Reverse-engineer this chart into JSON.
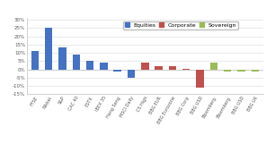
{
  "categories": [
    "FTSE",
    "Nikkei",
    "S&P",
    "CAC 40",
    "ESTX",
    "IBEX 35",
    "Hang Seng",
    "MSCI Daily",
    "CS High",
    "BBG EUR",
    "BBG Eurozone",
    "BBG Corp",
    "BBG USD",
    "Bloomberg",
    "Bloomberg",
    "BBG USD",
    "BBG UK"
  ],
  "values": [
    11,
    25,
    13.5,
    9,
    5.5,
    4,
    -1,
    -5,
    4,
    2,
    2,
    0.5,
    -11,
    4,
    -1,
    -1,
    -1.2
  ],
  "colors": [
    "#4472C4",
    "#4472C4",
    "#4472C4",
    "#4472C4",
    "#4472C4",
    "#4472C4",
    "#4472C4",
    "#4472C4",
    "#C0504D",
    "#C0504D",
    "#C0504D",
    "#C0504D",
    "#C0504D",
    "#9BBB59",
    "#9BBB59",
    "#9BBB59",
    "#9BBB59"
  ],
  "legend_labels": [
    "Equities",
    "Corporate",
    "Sovereign"
  ],
  "legend_colors": [
    "#4472C4",
    "#C0504D",
    "#9BBB59"
  ],
  "ylim": [
    -15,
    31
  ],
  "yticks": [
    -15,
    -10,
    -5,
    0,
    5,
    10,
    15,
    20,
    25,
    30
  ],
  "plot_bg": "#FFFFFF",
  "grid_color": "#D9D9D9",
  "spine_color": "#BFBFBF",
  "text_color": "#595959"
}
